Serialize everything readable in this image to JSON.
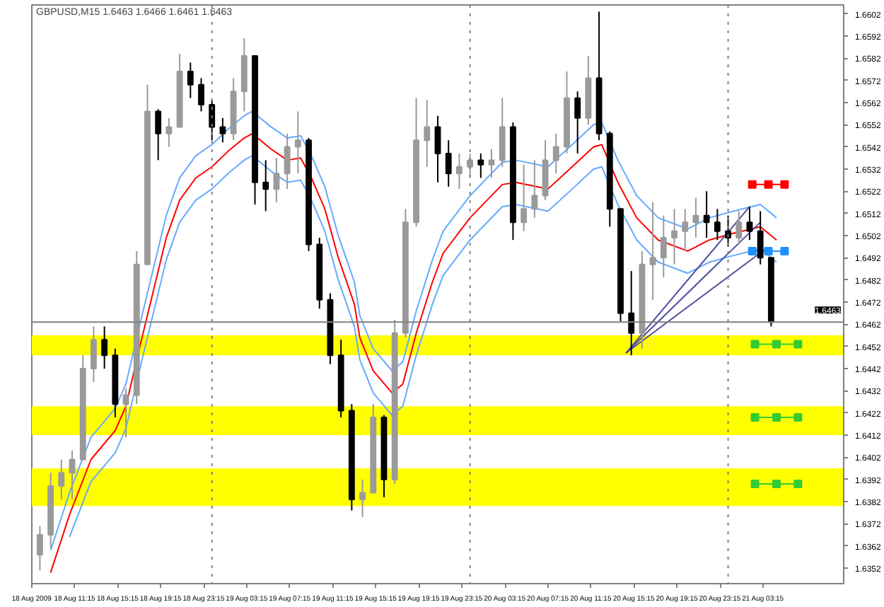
{
  "chart_data": {
    "type": "candlestick",
    "title": "GBPUSD,M15 1.6463 1.6466 1.6461 1.6463",
    "x": [
      "2009-08-18T08:00",
      "2009-08-18T09:00",
      "2009-08-18T10:00",
      "2009-08-18T11:00",
      "2009-08-18T12:00",
      "2009-08-18T13:00",
      "2009-08-18T14:00",
      "2009-08-18T15:00",
      "2009-08-18T16:00",
      "2009-08-18T17:00",
      "2009-08-18T18:00",
      "2009-08-18T19:00",
      "2009-08-18T20:00",
      "2009-08-18T21:00",
      "2009-08-18T22:00",
      "2009-08-18T23:00",
      "2009-08-19T00:00",
      "2009-08-19T01:00",
      "2009-08-19T02:00",
      "2009-08-19T03:00",
      "2009-08-19T04:00",
      "2009-08-19T05:00",
      "2009-08-19T06:00",
      "2009-08-19T07:00",
      "2009-08-19T08:00",
      "2009-08-19T09:00",
      "2009-08-19T10:00",
      "2009-08-19T11:00",
      "2009-08-19T12:00",
      "2009-08-19T13:00",
      "2009-08-19T14:00",
      "2009-08-19T15:00",
      "2009-08-19T16:00",
      "2009-08-19T17:00",
      "2009-08-19T18:00",
      "2009-08-19T19:00",
      "2009-08-19T20:00",
      "2009-08-19T21:00",
      "2009-08-19T22:00",
      "2009-08-19T23:00",
      "2009-08-20T00:00",
      "2009-08-20T01:00",
      "2009-08-20T02:00",
      "2009-08-20T03:00",
      "2009-08-20T04:00",
      "2009-08-20T05:00",
      "2009-08-20T06:00",
      "2009-08-20T07:00",
      "2009-08-20T08:00",
      "2009-08-20T09:00",
      "2009-08-20T10:00",
      "2009-08-20T11:00",
      "2009-08-20T12:00",
      "2009-08-20T13:00",
      "2009-08-20T14:00",
      "2009-08-20T15:00",
      "2009-08-20T16:00",
      "2009-08-20T17:00",
      "2009-08-20T18:00",
      "2009-08-20T19:00",
      "2009-08-20T20:00",
      "2009-08-20T21:00",
      "2009-08-20T22:00",
      "2009-08-20T23:00",
      "2009-08-21T00:00",
      "2009-08-21T01:00",
      "2009-08-21T02:00",
      "2009-08-21T03:00",
      "2009-08-21T04:00"
    ],
    "ohlc": [
      [
        1.6358,
        1.6371,
        1.6351,
        1.6367
      ],
      [
        1.6367,
        1.6395,
        1.6361,
        1.6389
      ],
      [
        1.6389,
        1.6401,
        1.6383,
        1.6395
      ],
      [
        1.6395,
        1.6405,
        1.6383,
        1.6401
      ],
      [
        1.6401,
        1.6448,
        1.6401,
        1.6442
      ],
      [
        1.6442,
        1.6461,
        1.6436,
        1.6455
      ],
      [
        1.6455,
        1.6461,
        1.6442,
        1.6448
      ],
      [
        1.6448,
        1.6451,
        1.642,
        1.6426
      ],
      [
        1.6426,
        1.6433,
        1.6411,
        1.643
      ],
      [
        1.643,
        1.6495,
        1.6426,
        1.6489
      ],
      [
        1.6489,
        1.657,
        1.6489,
        1.6558
      ],
      [
        1.6558,
        1.6559,
        1.6536,
        1.6548
      ],
      [
        1.6548,
        1.6555,
        1.6542,
        1.6551
      ],
      [
        1.6551,
        1.6584,
        1.6551,
        1.6576
      ],
      [
        1.6576,
        1.658,
        1.6564,
        1.657
      ],
      [
        1.657,
        1.6573,
        1.6558,
        1.6561
      ],
      [
        1.6561,
        1.6563,
        1.6545,
        1.6551
      ],
      [
        1.6551,
        1.6555,
        1.6544,
        1.6548
      ],
      [
        1.6548,
        1.6573,
        1.6545,
        1.6567
      ],
      [
        1.6567,
        1.6591,
        1.6558,
        1.6583
      ],
      [
        1.6583,
        1.6583,
        1.6516,
        1.6526
      ],
      [
        1.6526,
        1.6536,
        1.6513,
        1.6523
      ],
      [
        1.6523,
        1.6537,
        1.6517,
        1.653
      ],
      [
        1.653,
        1.6548,
        1.6523,
        1.6542
      ],
      [
        1.6542,
        1.6558,
        1.653,
        1.6545
      ],
      [
        1.6545,
        1.6546,
        1.6495,
        1.6498
      ],
      [
        1.6498,
        1.6501,
        1.6469,
        1.6473
      ],
      [
        1.6473,
        1.6476,
        1.6444,
        1.6448
      ],
      [
        1.6448,
        1.6455,
        1.642,
        1.6423
      ],
      [
        1.6423,
        1.6426,
        1.6378,
        1.6383
      ],
      [
        1.6383,
        1.6392,
        1.6375,
        1.6386
      ],
      [
        1.6386,
        1.6426,
        1.6386,
        1.642
      ],
      [
        1.642,
        1.6421,
        1.6384,
        1.6392
      ],
      [
        1.6392,
        1.6464,
        1.639,
        1.6458
      ],
      [
        1.6458,
        1.6514,
        1.6456,
        1.6508
      ],
      [
        1.6508,
        1.6564,
        1.6506,
        1.6545
      ],
      [
        1.6545,
        1.6563,
        1.6533,
        1.6551
      ],
      [
        1.6551,
        1.6556,
        1.6526,
        1.6539
      ],
      [
        1.6539,
        1.6545,
        1.6524,
        1.653
      ],
      [
        1.653,
        1.6539,
        1.6523,
        1.6533
      ],
      [
        1.6533,
        1.6539,
        1.6528,
        1.6536
      ],
      [
        1.6536,
        1.6539,
        1.6528,
        1.6534
      ],
      [
        1.6534,
        1.6541,
        1.6528,
        1.6536
      ],
      [
        1.6536,
        1.6564,
        1.6533,
        1.6551
      ],
      [
        1.6551,
        1.6553,
        1.65,
        1.6508
      ],
      [
        1.6508,
        1.6534,
        1.6504,
        1.6514
      ],
      [
        1.6514,
        1.6536,
        1.651,
        1.652
      ],
      [
        1.652,
        1.6545,
        1.6518,
        1.6536
      ],
      [
        1.6536,
        1.6548,
        1.653,
        1.6542
      ],
      [
        1.6542,
        1.6576,
        1.6539,
        1.6564
      ],
      [
        1.6564,
        1.6567,
        1.6539,
        1.6555
      ],
      [
        1.6555,
        1.6583,
        1.6552,
        1.6573
      ],
      [
        1.6573,
        1.6603,
        1.6545,
        1.6548
      ],
      [
        1.6548,
        1.6549,
        1.6506,
        1.6514
      ],
      [
        1.6514,
        1.6514,
        1.6463,
        1.6467
      ],
      [
        1.6467,
        1.6486,
        1.6448,
        1.6458
      ],
      [
        1.6458,
        1.6495,
        1.6451,
        1.6489
      ],
      [
        1.6489,
        1.6517,
        1.6473,
        1.6492
      ],
      [
        1.6492,
        1.6511,
        1.6483,
        1.6501
      ],
      [
        1.6501,
        1.6514,
        1.6489,
        1.6504
      ],
      [
        1.6504,
        1.6514,
        1.6495,
        1.6508
      ],
      [
        1.6508,
        1.6519,
        1.6501,
        1.6511
      ],
      [
        1.6511,
        1.6522,
        1.6501,
        1.6508
      ],
      [
        1.6508,
        1.6514,
        1.65,
        1.6504
      ],
      [
        1.6504,
        1.6511,
        1.6497,
        1.6501
      ],
      [
        1.6501,
        1.6513,
        1.6498,
        1.6508
      ],
      [
        1.6508,
        1.6515,
        1.65,
        1.6504
      ],
      [
        1.6504,
        1.6513,
        1.6489,
        1.6492
      ],
      [
        1.6492,
        1.6492,
        1.6461,
        1.6463
      ]
    ],
    "series": [
      {
        "type": "line",
        "color": "#ff0000",
        "x": [
          "2009-08-18T09:00",
          "2009-08-18T10:45",
          "2009-08-18T12:45",
          "2009-08-18T15:00",
          "2009-08-18T16:00",
          "2009-08-18T17:15",
          "2009-08-18T18:30",
          "2009-08-18T19:45",
          "2009-08-18T21:00",
          "2009-08-18T22:30",
          "2009-08-19T00:00",
          "2009-08-19T01:30",
          "2009-08-19T03:00",
          "2009-08-19T03:45",
          "2009-08-19T05:30",
          "2009-08-19T07:00",
          "2009-08-19T08:15",
          "2009-08-19T09:15",
          "2009-08-19T10:30",
          "2009-08-19T11:45",
          "2009-08-19T13:15",
          "2009-08-19T13:45",
          "2009-08-19T15:00",
          "2009-08-19T16:45",
          "2009-08-19T17:45",
          "2009-08-19T19:00",
          "2009-08-19T20:30",
          "2009-08-19T21:30",
          "2009-08-20T00:00",
          "2009-08-20T03:00",
          "2009-08-20T04:15",
          "2009-08-20T07:15",
          "2009-08-20T09:30",
          "2009-08-20T11:30",
          "2009-08-20T12:15",
          "2009-08-20T13:45",
          "2009-08-20T15:30",
          "2009-08-20T17:30",
          "2009-08-20T20:15",
          "2009-08-20T22:15",
          "2009-08-21T00:30",
          "2009-08-21T03:00",
          "2009-08-21T04:30"
        ],
        "values": [
          1.635,
          1.6376,
          1.6401,
          1.6414,
          1.6425,
          1.6451,
          1.6476,
          1.6501,
          1.6518,
          1.6528,
          1.6533,
          1.654,
          1.6546,
          1.6548,
          1.6541,
          1.6536,
          1.6537,
          1.6528,
          1.6514,
          1.6492,
          1.6471,
          1.6456,
          1.6441,
          1.6431,
          1.6435,
          1.6458,
          1.6481,
          1.6494,
          1.651,
          1.6525,
          1.6526,
          1.6523,
          1.6533,
          1.6542,
          1.6543,
          1.6526,
          1.651,
          1.65,
          1.6495,
          1.65,
          1.6503,
          1.6506,
          1.65
        ]
      },
      {
        "type": "line",
        "color": "#66aaff",
        "x": [
          "2009-08-18T09:00",
          "2009-08-18T10:45",
          "2009-08-18T12:45",
          "2009-08-18T15:00",
          "2009-08-18T16:00",
          "2009-08-18T17:15",
          "2009-08-18T18:30",
          "2009-08-18T19:45",
          "2009-08-18T21:00",
          "2009-08-18T22:30",
          "2009-08-19T00:00",
          "2009-08-19T01:30",
          "2009-08-19T03:00",
          "2009-08-19T03:45",
          "2009-08-19T05:30",
          "2009-08-19T07:00",
          "2009-08-19T08:15",
          "2009-08-19T09:15",
          "2009-08-19T10:30",
          "2009-08-19T11:45",
          "2009-08-19T13:15",
          "2009-08-19T13:45",
          "2009-08-19T15:00",
          "2009-08-19T16:45",
          "2009-08-19T17:45",
          "2009-08-19T19:00",
          "2009-08-19T20:30",
          "2009-08-19T21:30",
          "2009-08-20T00:00",
          "2009-08-20T03:00",
          "2009-08-20T04:15",
          "2009-08-20T07:15",
          "2009-08-20T09:30",
          "2009-08-20T11:30",
          "2009-08-20T12:15",
          "2009-08-20T13:45",
          "2009-08-20T15:30",
          "2009-08-20T17:30",
          "2009-08-20T20:15",
          "2009-08-20T22:15",
          "2009-08-21T00:30",
          "2009-08-21T03:00",
          "2009-08-21T04:30"
        ],
        "values": [
          1.636,
          1.6386,
          1.6411,
          1.6424,
          1.6435,
          1.6461,
          1.6486,
          1.6511,
          1.6528,
          1.6538,
          1.6543,
          1.655,
          1.6556,
          1.6558,
          1.6551,
          1.6546,
          1.6547,
          1.6538,
          1.6524,
          1.6502,
          1.6481,
          1.6466,
          1.6451,
          1.6441,
          1.6445,
          1.6468,
          1.6491,
          1.6504,
          1.652,
          1.6535,
          1.6536,
          1.6533,
          1.6543,
          1.6552,
          1.6553,
          1.6536,
          1.652,
          1.651,
          1.6505,
          1.651,
          1.6513,
          1.6516,
          1.651
        ]
      },
      {
        "type": "line",
        "color": "#66aaff",
        "x": [
          "2009-08-18T10:45",
          "2009-08-18T12:45",
          "2009-08-18T15:00",
          "2009-08-18T16:00",
          "2009-08-18T17:15",
          "2009-08-18T18:30",
          "2009-08-18T19:45",
          "2009-08-18T21:00",
          "2009-08-18T22:30",
          "2009-08-19T00:00",
          "2009-08-19T01:30",
          "2009-08-19T03:00",
          "2009-08-19T03:45",
          "2009-08-19T05:30",
          "2009-08-19T07:00",
          "2009-08-19T08:15",
          "2009-08-19T09:15",
          "2009-08-19T10:30",
          "2009-08-19T11:45",
          "2009-08-19T13:15",
          "2009-08-19T13:45",
          "2009-08-19T15:00",
          "2009-08-19T16:45",
          "2009-08-19T17:45",
          "2009-08-19T19:00",
          "2009-08-19T20:30",
          "2009-08-19T21:30",
          "2009-08-20T00:00",
          "2009-08-20T03:00",
          "2009-08-20T04:15",
          "2009-08-20T07:15",
          "2009-08-20T09:30",
          "2009-08-20T11:30",
          "2009-08-20T12:15",
          "2009-08-20T13:45",
          "2009-08-20T15:30",
          "2009-08-20T17:30",
          "2009-08-20T20:15",
          "2009-08-20T22:15",
          "2009-08-21T00:30",
          "2009-08-21T03:00",
          "2009-08-21T04:30"
        ],
        "values": [
          1.6366,
          1.6391,
          1.6404,
          1.6415,
          1.6441,
          1.6466,
          1.6491,
          1.6508,
          1.6518,
          1.6523,
          1.653,
          1.6536,
          1.6538,
          1.6531,
          1.6526,
          1.6527,
          1.6518,
          1.6504,
          1.6482,
          1.6461,
          1.6446,
          1.6431,
          1.6421,
          1.6425,
          1.6448,
          1.6471,
          1.6484,
          1.65,
          1.6515,
          1.6516,
          1.6513,
          1.6523,
          1.6532,
          1.6533,
          1.6516,
          1.65,
          1.649,
          1.6485,
          1.649,
          1.6493,
          1.6496,
          1.649
        ]
      },
      {
        "type": "line",
        "color": "#5050a0",
        "x": [
          "2009-08-20T14:30",
          "2009-08-21T02:00"
        ],
        "values": [
          1.6449,
          1.6515
        ]
      },
      {
        "type": "line",
        "color": "#5050a0",
        "x": [
          "2009-08-20T14:30",
          "2009-08-21T03:00"
        ],
        "values": [
          1.6449,
          1.6508
        ]
      },
      {
        "type": "line",
        "color": "#5050a0",
        "x": [
          "2009-08-20T14:30",
          "2009-08-21T03:30"
        ],
        "values": [
          1.6449,
          1.6496
        ]
      },
      {
        "type": "line",
        "color": "#ff0000",
        "marker": "square",
        "x": [
          "2009-08-21T02:15",
          "2009-08-21T03:45",
          "2009-08-21T05:15"
        ],
        "values": [
          1.6525,
          1.6525,
          1.6525
        ]
      },
      {
        "type": "line",
        "color": "#1e90ff",
        "marker": "square",
        "x": [
          "2009-08-21T02:15",
          "2009-08-21T03:45",
          "2009-08-21T05:15"
        ],
        "values": [
          1.6495,
          1.6495,
          1.6495
        ]
      },
      {
        "type": "line",
        "color": "#33cc33",
        "marker": "square",
        "x": [
          "2009-08-21T02:30",
          "2009-08-21T04:30",
          "2009-08-21T06:30"
        ],
        "values": [
          1.6453,
          1.6453,
          1.6453
        ]
      },
      {
        "type": "line",
        "color": "#33cc33",
        "marker": "square",
        "x": [
          "2009-08-21T02:30",
          "2009-08-21T04:30",
          "2009-08-21T06:30"
        ],
        "values": [
          1.642,
          1.642,
          1.642
        ]
      },
      {
        "type": "line",
        "color": "#33cc33",
        "marker": "square",
        "x": [
          "2009-08-21T02:30",
          "2009-08-21T04:30",
          "2009-08-21T06:30"
        ],
        "values": [
          1.639,
          1.639,
          1.639
        ]
      }
    ],
    "bands": [
      {
        "axis": "y",
        "from": 1.6448,
        "to": 1.6457,
        "color": "#ffff00"
      },
      {
        "axis": "y",
        "from": 1.6412,
        "to": 1.6425,
        "color": "#ffff00"
      },
      {
        "axis": "y",
        "from": 1.638,
        "to": 1.6397,
        "color": "#ffff00"
      }
    ],
    "ref_lines": [
      {
        "axis": "x",
        "value": "2009-08-19T00:00",
        "color": "#808080",
        "line_style": "dotted"
      },
      {
        "axis": "x",
        "value": "2009-08-20T00:00",
        "color": "#808080",
        "line_style": "dotted"
      },
      {
        "axis": "x",
        "value": "2009-08-21T00:00",
        "color": "#808080",
        "line_style": "dotted"
      },
      {
        "axis": "y",
        "value": 1.6463,
        "label": "1.6463",
        "color": "#808080",
        "line_style": "solid"
      }
    ],
    "xlim": [
      "2009-08-18T07:15",
      "2009-08-21T10:45"
    ],
    "ylim": [
      1.6345,
      1.6606
    ],
    "xticks": [
      {
        "value": "2009-08-18T07:15",
        "label": "18 Aug 2009"
      },
      {
        "value": "2009-08-18T11:15",
        "label": "18 Aug 11:15"
      },
      {
        "value": "2009-08-18T15:15",
        "label": "18 Aug 15:15"
      },
      {
        "value": "2009-08-18T19:15",
        "label": "18 Aug 19:15"
      },
      {
        "value": "2009-08-18T23:15",
        "label": "18 Aug 23:15"
      },
      {
        "value": "2009-08-19T03:15",
        "label": "19 Aug 03:15"
      },
      {
        "value": "2009-08-19T07:15",
        "label": "19 Aug 07:15"
      },
      {
        "value": "2009-08-19T11:15",
        "label": "19 Aug 11:15"
      },
      {
        "value": "2009-08-19T15:15",
        "label": "19 Aug 15:15"
      },
      {
        "value": "2009-08-19T19:15",
        "label": "19 Aug 19:15"
      },
      {
        "value": "2009-08-19T23:15",
        "label": "19 Aug 23:15"
      },
      {
        "value": "2009-08-20T03:15",
        "label": "20 Aug 03:15"
      },
      {
        "value": "2009-08-20T07:15",
        "label": "20 Aug 07:15"
      },
      {
        "value": "2009-08-20T11:15",
        "label": "20 Aug 11:15"
      },
      {
        "value": "2009-08-20T15:15",
        "label": "20 Aug 15:15"
      },
      {
        "value": "2009-08-20T19:15",
        "label": "20 Aug 19:15"
      },
      {
        "value": "2009-08-20T23:15",
        "label": "20 Aug 23:15"
      },
      {
        "value": "2009-08-21T03:15",
        "label": "21 Aug 03:15"
      }
    ],
    "yticks": [
      1.6352,
      1.6362,
      1.6372,
      1.6382,
      1.6392,
      1.6402,
      1.6412,
      1.6422,
      1.6432,
      1.6442,
      1.6452,
      1.6462,
      1.6472,
      1.6482,
      1.6492,
      1.6502,
      1.6512,
      1.6522,
      1.6532,
      1.6542,
      1.6552,
      1.6562,
      1.6572,
      1.6582,
      1.6592,
      1.6602
    ],
    "grid": false
  }
}
